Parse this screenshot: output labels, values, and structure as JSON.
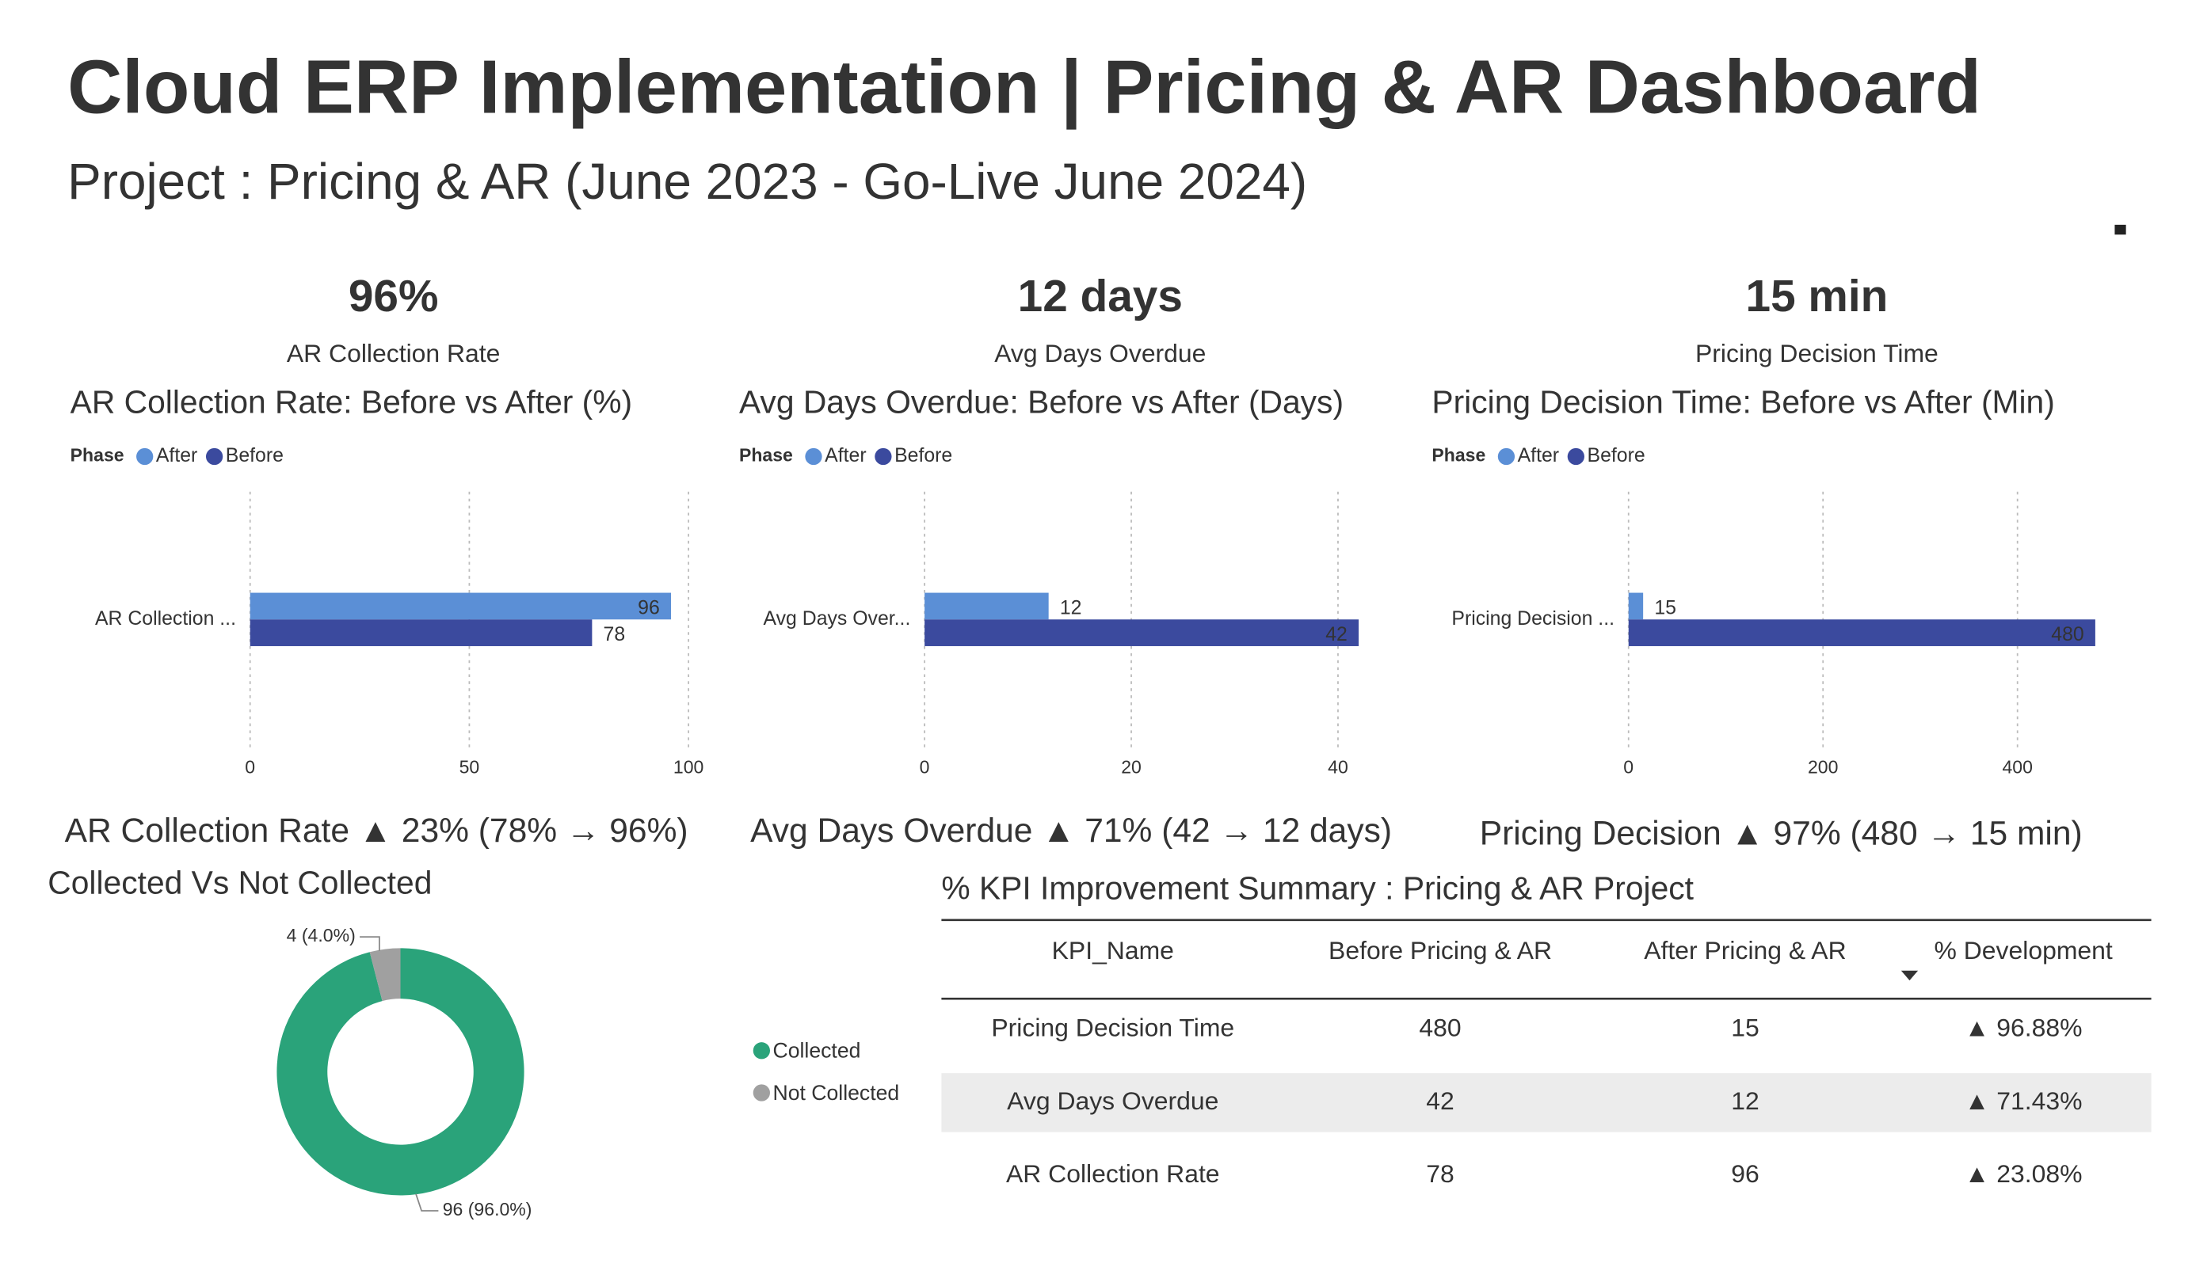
{
  "header": {
    "title": "Cloud ERP Implementation | Pricing & AR Dashboard",
    "subtitle": "Project : Pricing & AR  (June 2023 - Go-Live June 2024)"
  },
  "kpis": [
    {
      "value": "96%",
      "label": "AR Collection Rate"
    },
    {
      "value": "12 days",
      "label": "Avg Days Overdue"
    },
    {
      "value": "15 min",
      "label": "Pricing Decision Time"
    }
  ],
  "chart_data": [
    {
      "type": "bar",
      "title": "AR Collection Rate: Before vs After (%)",
      "legend_title": "Phase",
      "categories": [
        "AR Collection ..."
      ],
      "series": [
        {
          "name": "After",
          "color": "#5b8fd6",
          "values": [
            96
          ]
        },
        {
          "name": "Before",
          "color": "#3b4a9e",
          "values": [
            78
          ]
        }
      ],
      "xlim": [
        0,
        100
      ],
      "xticks": [
        0,
        50,
        100
      ],
      "grid": true
    },
    {
      "type": "bar",
      "title": "Avg Days Overdue: Before vs After (Days)",
      "legend_title": "Phase",
      "categories": [
        "Avg Days Over..."
      ],
      "series": [
        {
          "name": "After",
          "color": "#5b8fd6",
          "values": [
            12
          ]
        },
        {
          "name": "Before",
          "color": "#3b4a9e",
          "values": [
            42
          ]
        }
      ],
      "xlim": [
        0,
        45
      ],
      "xticks": [
        0,
        20,
        40
      ],
      "grid": true
    },
    {
      "type": "bar",
      "title": "Pricing Decision Time: Before vs After (Min)",
      "legend_title": "Phase",
      "categories": [
        "Pricing Decision ..."
      ],
      "series": [
        {
          "name": "After",
          "color": "#5b8fd6",
          "values": [
            15
          ]
        },
        {
          "name": "Before",
          "color": "#3b4a9e",
          "values": [
            480
          ]
        }
      ],
      "xlim": [
        0,
        500
      ],
      "xticks": [
        0,
        200,
        400
      ],
      "grid": true
    },
    {
      "type": "pie",
      "title": "Collected Vs Not Collected",
      "categories": [
        "Collected",
        "Not Collected"
      ],
      "values": [
        96,
        4
      ],
      "value_labels": [
        "96 (96.0%)",
        "4 (4.0%)"
      ],
      "colors": [
        "#2aa37a",
        "#a0a0a0"
      ],
      "donut": true
    }
  ],
  "improvements": [
    "AR Collection Rate  ▲ 23%  (78% → 96%)",
    "Avg Days Overdue ▲ 71%  (42 → 12 days)",
    "Pricing Decision  ▲ 97%  (480 → 15 min)"
  ],
  "table": {
    "title": "% KPI Improvement Summary : Pricing & AR Project",
    "columns": [
      "KPI_Name",
      "Before Pricing & AR",
      "After Pricing & AR",
      "% Development"
    ],
    "rows": [
      [
        "Pricing Decision Time",
        480,
        15,
        "▲ 96.88%"
      ],
      [
        "Avg Days Overdue",
        42,
        12,
        "▲ 71.43%"
      ],
      [
        "AR Collection Rate",
        78,
        96,
        "▲ 23.08%"
      ]
    ]
  }
}
